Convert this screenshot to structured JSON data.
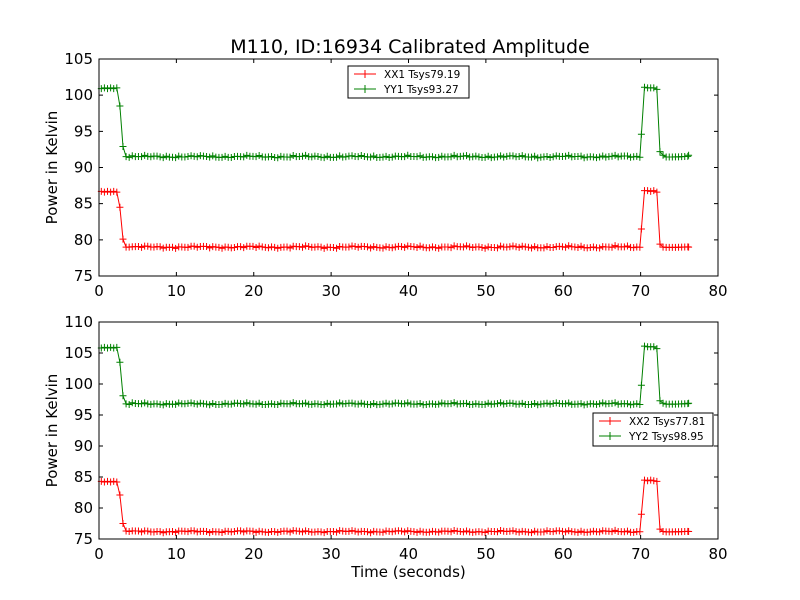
{
  "figure": {
    "title": "M110, ID:16934 Calibrated Amplitude"
  },
  "chart_data": [
    {
      "type": "line",
      "title": "M110, ID:16934 Calibrated Amplitude",
      "xlabel": "",
      "ylabel": "Power in Kelvin",
      "xlim": [
        0,
        80
      ],
      "ylim": [
        75,
        105
      ],
      "xticks": [
        "0",
        "10",
        "20",
        "30",
        "40",
        "50",
        "60",
        "70",
        "80"
      ],
      "yticks": [
        "75",
        "80",
        "85",
        "90",
        "95",
        "100",
        "105"
      ],
      "grid": false,
      "legend_position": "top-center",
      "marker": "+",
      "series": [
        {
          "name": "XX1 Tsys79.19",
          "color": "#ff0000",
          "x": [
            0.3,
            0.7,
            1.1,
            1.5,
            1.9,
            2.3,
            2.7,
            3.1,
            3.5,
            3.9,
            70.1,
            70.5,
            70.9,
            71.3,
            71.7,
            72.1,
            72.5,
            72.9,
            76.2
          ],
          "y": [
            86.7,
            86.6,
            86.7,
            86.6,
            86.7,
            86.6,
            84.5,
            80.1,
            79.0,
            79.0,
            81.5,
            86.8,
            86.8,
            86.7,
            86.8,
            86.6,
            79.4,
            79.0,
            79.0
          ],
          "baseline": 79.0
        },
        {
          "name": "YY1 Tsys93.27",
          "color": "#008000",
          "x": [
            0.3,
            0.7,
            1.1,
            1.5,
            1.9,
            2.3,
            2.7,
            3.1,
            3.5,
            3.9,
            70.1,
            70.5,
            70.9,
            71.3,
            71.7,
            72.1,
            72.5,
            72.9,
            76.2
          ],
          "y": [
            100.9,
            101.0,
            100.9,
            101.0,
            100.9,
            101.0,
            98.5,
            92.9,
            91.5,
            91.4,
            94.6,
            101.1,
            101.0,
            101.0,
            101.0,
            100.8,
            92.2,
            91.7,
            91.7
          ],
          "baseline": 91.5
        }
      ]
    },
    {
      "type": "line",
      "title": "",
      "xlabel": "Time (seconds)",
      "ylabel": "Power in Kelvin",
      "xlim": [
        0,
        80
      ],
      "ylim": [
        75,
        110
      ],
      "xticks": [
        "0",
        "10",
        "20",
        "30",
        "40",
        "50",
        "60",
        "70",
        "80"
      ],
      "yticks": [
        "75",
        "80",
        "85",
        "90",
        "95",
        "100",
        "105",
        "110"
      ],
      "grid": false,
      "legend_position": "center-right",
      "marker": "+",
      "series": [
        {
          "name": "XX2 Tsys77.81",
          "color": "#ff0000",
          "x": [
            0.3,
            0.7,
            1.1,
            1.5,
            1.9,
            2.3,
            2.7,
            3.1,
            3.5,
            3.9,
            70.1,
            70.5,
            70.9,
            71.3,
            71.7,
            72.1,
            72.5,
            72.9,
            76.2
          ],
          "y": [
            84.3,
            84.2,
            84.3,
            84.2,
            84.3,
            84.2,
            82.1,
            77.5,
            76.3,
            76.2,
            79.0,
            84.5,
            84.4,
            84.5,
            84.4,
            84.3,
            76.6,
            76.2,
            76.2
          ],
          "baseline": 76.2
        },
        {
          "name": "YY2 Tsys98.95",
          "color": "#008000",
          "x": [
            0.3,
            0.7,
            1.1,
            1.5,
            1.9,
            2.3,
            2.7,
            3.1,
            3.5,
            3.9,
            70.1,
            70.5,
            70.9,
            71.3,
            71.7,
            72.1,
            72.5,
            72.9,
            76.2
          ],
          "y": [
            105.8,
            105.9,
            105.8,
            105.9,
            105.8,
            105.9,
            103.5,
            98.1,
            96.8,
            96.7,
            99.8,
            106.1,
            106.0,
            106.0,
            106.0,
            105.7,
            97.3,
            96.9,
            96.9
          ],
          "baseline": 96.8
        }
      ]
    }
  ]
}
